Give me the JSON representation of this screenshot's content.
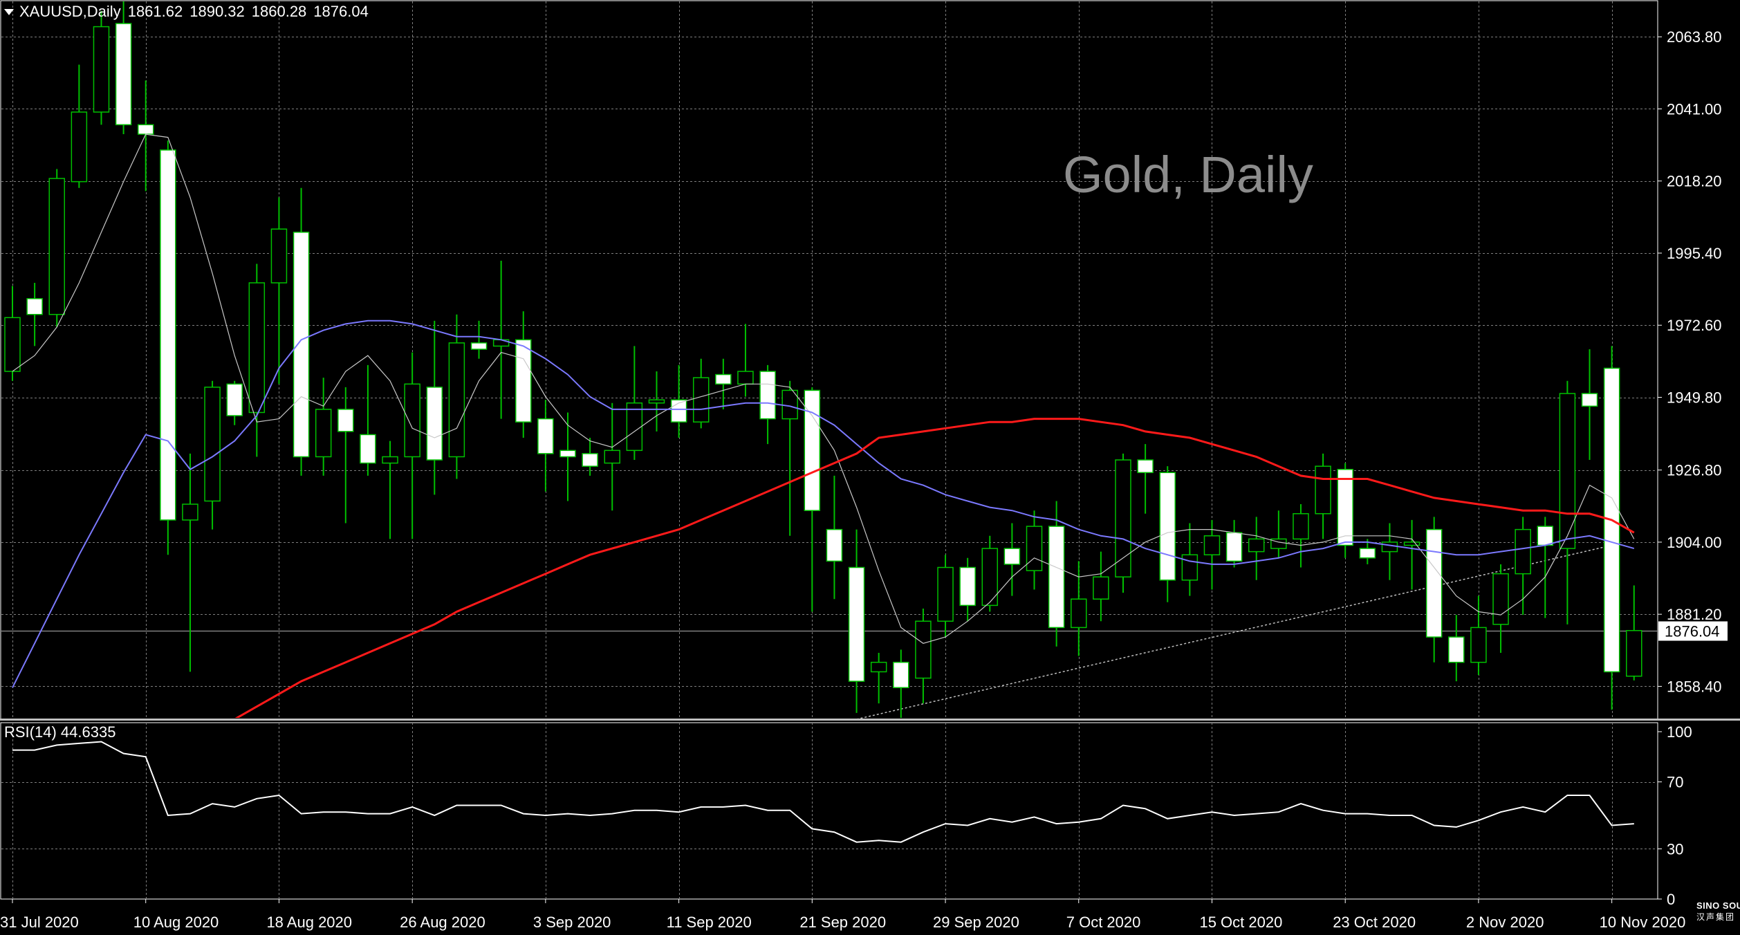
{
  "header": {
    "symbol": "XAUUSD,Daily",
    "open": "1861.62",
    "high": "1890.32",
    "low": "1860.28",
    "close": "1876.04"
  },
  "watermark": "Gold, Daily",
  "rsi_label": "RSI(14) 44.6335",
  "logo": {
    "line1": "SINO SOUND",
    "line2": "汉声集团"
  },
  "colors": {
    "background": "#000000",
    "grid": "#7f7f7f",
    "bull_candle": "#000000",
    "bear_candle": "#ffffff",
    "wick": "#00c000",
    "ma_fast": "#c8c8c8",
    "ma_mid": "#7b79ff",
    "ma_slow": "#ff1a1a",
    "rsi_line": "#ffffff",
    "price_label_bg": "#ffffff"
  },
  "chart_data": [
    {
      "type": "candlestick",
      "title": "XAUUSD,Daily",
      "ylim": [
        1848,
        2075
      ],
      "y_ticks": [
        "2063.80",
        "2041.00",
        "2018.20",
        "1995.40",
        "1972.60",
        "1949.80",
        "1926.80",
        "1904.00",
        "1881.20",
        "1858.40"
      ],
      "y_tick_values": [
        2063.8,
        2041.0,
        2018.2,
        1995.4,
        1972.6,
        1949.8,
        1926.8,
        1904.0,
        1881.2,
        1858.4
      ],
      "current_price": 1876.04,
      "current_price_label": "1876.04",
      "x_labels": [
        "31 Jul 2020",
        "10 Aug 2020",
        "18 Aug 2020",
        "26 Aug 2020",
        "3 Sep 2020",
        "11 Sep 2020",
        "21 Sep 2020",
        "29 Sep 2020",
        "7 Oct 2020",
        "15 Oct 2020",
        "23 Oct 2020",
        "2 Nov 2020",
        "10 Nov 2020"
      ],
      "x_label_index": [
        0,
        6,
        12,
        18,
        24,
        30,
        36,
        42,
        48,
        54,
        60,
        66,
        72
      ],
      "candles": [
        {
          "o": 1958,
          "h": 1985,
          "l": 1955,
          "c": 1975
        },
        {
          "o": 1981,
          "h": 1986,
          "l": 1966,
          "c": 1976
        },
        {
          "o": 1976,
          "h": 2022,
          "l": 1972,
          "c": 2019
        },
        {
          "o": 2018,
          "h": 2055,
          "l": 2016,
          "c": 2040
        },
        {
          "o": 2040,
          "h": 2072,
          "l": 2036,
          "c": 2067
        },
        {
          "o": 2068,
          "h": 2075,
          "l": 2033,
          "c": 2036
        },
        {
          "o": 2036,
          "h": 2050,
          "l": 2015,
          "c": 2033
        },
        {
          "o": 2028,
          "h": 2031,
          "l": 1900,
          "c": 1911
        },
        {
          "o": 1911,
          "h": 1932,
          "l": 1863,
          "c": 1916
        },
        {
          "o": 1917,
          "h": 1955,
          "l": 1908,
          "c": 1953
        },
        {
          "o": 1954,
          "h": 1955,
          "l": 1941,
          "c": 1944
        },
        {
          "o": 1945,
          "h": 1992,
          "l": 1931,
          "c": 1986
        },
        {
          "o": 1986,
          "h": 2013,
          "l": 1954,
          "c": 2003
        },
        {
          "o": 2002,
          "h": 2016,
          "l": 1925,
          "c": 1931
        },
        {
          "o": 1931,
          "h": 1956,
          "l": 1925,
          "c": 1946
        },
        {
          "o": 1946,
          "h": 1953,
          "l": 1910,
          "c": 1939
        },
        {
          "o": 1938,
          "h": 1960,
          "l": 1925,
          "c": 1929
        },
        {
          "o": 1929,
          "h": 1936,
          "l": 1905,
          "c": 1931
        },
        {
          "o": 1931,
          "h": 1964,
          "l": 1905,
          "c": 1954
        },
        {
          "o": 1953,
          "h": 1974,
          "l": 1919,
          "c": 1930
        },
        {
          "o": 1931,
          "h": 1976,
          "l": 1924,
          "c": 1967
        },
        {
          "o": 1967,
          "h": 1974,
          "l": 1962,
          "c": 1965
        },
        {
          "o": 1966,
          "h": 1993,
          "l": 1943,
          "c": 1968
        },
        {
          "o": 1968,
          "h": 1977,
          "l": 1937,
          "c": 1942
        },
        {
          "o": 1943,
          "h": 1949,
          "l": 1920,
          "c": 1932
        },
        {
          "o": 1933,
          "h": 1945,
          "l": 1917,
          "c": 1931
        },
        {
          "o": 1932,
          "h": 1937,
          "l": 1925,
          "c": 1928
        },
        {
          "o": 1929,
          "h": 1948,
          "l": 1914,
          "c": 1933
        },
        {
          "o": 1933,
          "h": 1966,
          "l": 1930,
          "c": 1948
        },
        {
          "o": 1948,
          "h": 1958,
          "l": 1939,
          "c": 1949
        },
        {
          "o": 1949,
          "h": 1960,
          "l": 1937,
          "c": 1942
        },
        {
          "o": 1942,
          "h": 1962,
          "l": 1940,
          "c": 1956
        },
        {
          "o": 1957,
          "h": 1962,
          "l": 1946,
          "c": 1954
        },
        {
          "o": 1954,
          "h": 1973,
          "l": 1950,
          "c": 1958
        },
        {
          "o": 1958,
          "h": 1960,
          "l": 1935,
          "c": 1943
        },
        {
          "o": 1943,
          "h": 1955,
          "l": 1906,
          "c": 1952
        },
        {
          "o": 1952,
          "h": 1953,
          "l": 1882,
          "c": 1914
        },
        {
          "o": 1908,
          "h": 1925,
          "l": 1886,
          "c": 1898
        },
        {
          "o": 1896,
          "h": 1908,
          "l": 1850,
          "c": 1860
        },
        {
          "o": 1863,
          "h": 1869,
          "l": 1853,
          "c": 1866
        },
        {
          "o": 1866,
          "h": 1870,
          "l": 1848,
          "c": 1858
        },
        {
          "o": 1861,
          "h": 1883,
          "l": 1853,
          "c": 1879
        },
        {
          "o": 1879,
          "h": 1900,
          "l": 1874,
          "c": 1896
        },
        {
          "o": 1896,
          "h": 1899,
          "l": 1879,
          "c": 1884
        },
        {
          "o": 1884,
          "h": 1906,
          "l": 1882,
          "c": 1902
        },
        {
          "o": 1902,
          "h": 1910,
          "l": 1887,
          "c": 1897
        },
        {
          "o": 1895,
          "h": 1914,
          "l": 1889,
          "c": 1909
        },
        {
          "o": 1909,
          "h": 1917,
          "l": 1871,
          "c": 1877
        },
        {
          "o": 1877,
          "h": 1898,
          "l": 1868,
          "c": 1886
        },
        {
          "o": 1886,
          "h": 1901,
          "l": 1879,
          "c": 1893
        },
        {
          "o": 1893,
          "h": 1932,
          "l": 1888,
          "c": 1930
        },
        {
          "o": 1930,
          "h": 1935,
          "l": 1913,
          "c": 1926
        },
        {
          "o": 1926,
          "h": 1928,
          "l": 1885,
          "c": 1892
        },
        {
          "o": 1892,
          "h": 1910,
          "l": 1887,
          "c": 1900
        },
        {
          "o": 1900,
          "h": 1911,
          "l": 1889,
          "c": 1906
        },
        {
          "o": 1907,
          "h": 1911,
          "l": 1896,
          "c": 1898
        },
        {
          "o": 1901,
          "h": 1912,
          "l": 1892,
          "c": 1905
        },
        {
          "o": 1902,
          "h": 1914,
          "l": 1899,
          "c": 1905
        },
        {
          "o": 1905,
          "h": 1916,
          "l": 1896,
          "c": 1913
        },
        {
          "o": 1913,
          "h": 1932,
          "l": 1905,
          "c": 1928
        },
        {
          "o": 1927,
          "h": 1929,
          "l": 1899,
          "c": 1903
        },
        {
          "o": 1902,
          "h": 1905,
          "l": 1897,
          "c": 1899
        },
        {
          "o": 1901,
          "h": 1910,
          "l": 1892,
          "c": 1904
        },
        {
          "o": 1903,
          "h": 1911,
          "l": 1889,
          "c": 1904
        },
        {
          "o": 1908,
          "h": 1912,
          "l": 1866,
          "c": 1874
        },
        {
          "o": 1874,
          "h": 1881,
          "l": 1860,
          "c": 1866
        },
        {
          "o": 1866,
          "h": 1887,
          "l": 1862,
          "c": 1877
        },
        {
          "o": 1878,
          "h": 1897,
          "l": 1869,
          "c": 1894
        },
        {
          "o": 1894,
          "h": 1912,
          "l": 1881,
          "c": 1908
        },
        {
          "o": 1909,
          "h": 1912,
          "l": 1880,
          "c": 1903
        },
        {
          "o": 1902,
          "h": 1955,
          "l": 1878,
          "c": 1951
        },
        {
          "o": 1951,
          "h": 1965,
          "l": 1930,
          "c": 1947
        },
        {
          "o": 1959,
          "h": 1966,
          "l": 1851,
          "c": 1863
        },
        {
          "o": 1861.62,
          "h": 1890.32,
          "l": 1860.28,
          "c": 1876.04
        }
      ],
      "ma_fast": [
        1958,
        1963,
        1972,
        1986,
        2002,
        2018,
        2033,
        2032,
        2013,
        1989,
        1963,
        1942,
        1943,
        1950,
        1947,
        1958,
        1963,
        1955,
        1940,
        1937,
        1940,
        1955,
        1964,
        1962,
        1950,
        1941,
        1936,
        1934,
        1939,
        1944,
        1948,
        1950,
        1952,
        1954,
        1954,
        1953,
        1944,
        1933,
        1915,
        1895,
        1877,
        1872,
        1874,
        1879,
        1885,
        1893,
        1899,
        1896,
        1893,
        1894,
        1899,
        1904,
        1907,
        1908,
        1908,
        1907,
        1906,
        1904,
        1903,
        1904,
        1906,
        1906,
        1906,
        1905,
        1896,
        1887,
        1882,
        1881,
        1886,
        1893,
        1906,
        1922,
        1918,
        1905
      ],
      "ma_mid": [
        1858,
        1872,
        1886,
        1900,
        1913,
        1926,
        1938,
        1936,
        1927,
        1931,
        1936,
        1944,
        1959,
        1968,
        1971,
        1973,
        1974,
        1974,
        1973,
        1971,
        1969,
        1969,
        1968,
        1966,
        1962,
        1957,
        1950,
        1946,
        1946,
        1946,
        1946,
        1946,
        1947,
        1948,
        1948,
        1947,
        1945,
        1941,
        1935,
        1929,
        1924,
        1922,
        1919,
        1917,
        1915,
        1914,
        1912,
        1911,
        1908,
        1906,
        1905,
        1902,
        1900,
        1898,
        1897,
        1897,
        1898,
        1899,
        1901,
        1902,
        1904,
        1904,
        1903,
        1902,
        1901,
        1900,
        1900,
        1901,
        1902,
        1903,
        1905,
        1906,
        1904,
        1902
      ],
      "ma_slow": [
        null,
        null,
        null,
        null,
        null,
        null,
        null,
        null,
        null,
        null,
        1848,
        1852,
        1856,
        1860,
        1863,
        1866,
        1869,
        1872,
        1875,
        1878,
        1882,
        1885,
        1888,
        1891,
        1894,
        1897,
        1900,
        1902,
        1904,
        1906,
        1908,
        1911,
        1914,
        1917,
        1920,
        1923,
        1926,
        1929,
        1932,
        1937,
        1938,
        1939,
        1940,
        1941,
        1942,
        1942,
        1943,
        1943,
        1943,
        1942,
        1941,
        1939,
        1938,
        1937,
        1935,
        1933,
        1931,
        1928,
        1925,
        1924,
        1924,
        1924,
        1922,
        1920,
        1918,
        1917,
        1916,
        1915,
        1914,
        1914,
        1913,
        1913,
        1911,
        1907
      ],
      "trendline": {
        "from_index": 38,
        "from_price": 1848,
        "to_index": 72,
        "to_price": 1903
      }
    },
    {
      "type": "line",
      "title": "RSI(14) 44.6335",
      "ylim": [
        0,
        100
      ],
      "y_ticks": [
        "100",
        "70",
        "30",
        "0"
      ],
      "y_tick_values": [
        100,
        70,
        30,
        0
      ],
      "values": [
        89,
        89,
        92,
        93,
        94,
        87,
        85,
        50,
        51,
        57,
        55,
        60,
        62,
        51,
        52,
        52,
        51,
        51,
        55,
        50,
        56,
        56,
        56,
        51,
        50,
        51,
        50,
        51,
        53,
        53,
        52,
        55,
        55,
        56,
        53,
        53,
        42,
        40,
        34,
        35,
        34,
        40,
        45,
        44,
        48,
        46,
        49,
        45,
        46,
        48,
        56,
        54,
        48,
        50,
        52,
        50,
        51,
        52,
        57,
        53,
        51,
        51,
        50,
        50,
        44,
        43,
        47,
        52,
        55,
        52,
        62,
        62,
        44,
        45
      ]
    }
  ]
}
